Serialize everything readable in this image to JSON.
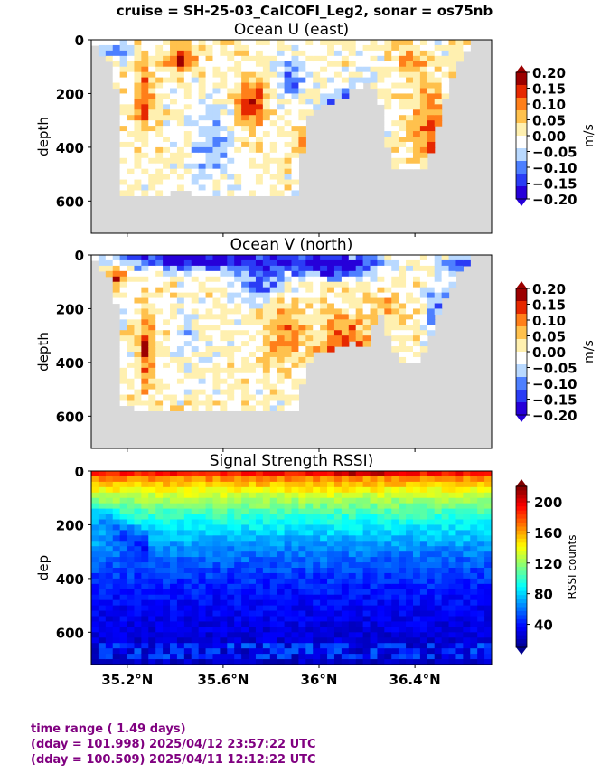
{
  "suptitle": "cruise = SH-25-03_CalCOFI_Leg2,  sonar = os75nb",
  "footer": {
    "line1": "time range ( 1.49 days)",
    "line2": "(dday = 101.998) 2025/04/12 23:57:22 UTC",
    "line3": "(dday = 100.509) 2025/04/11 12:12:22 UTC"
  },
  "colors": {
    "nodata": "#d9d9d9",
    "footer": "#800080",
    "vel_levels": [
      "#2600d9",
      "#2a3cf5",
      "#4d7fff",
      "#b9d9ff",
      "#ffffff",
      "#fff0b0",
      "#ffc14d",
      "#ff7f1a",
      "#e62800",
      "#9c0000"
    ],
    "jet": [
      "#00008f",
      "#0000ff",
      "#007fff",
      "#00ffff",
      "#7fff7f",
      "#ffff00",
      "#ff7f00",
      "#ff0000",
      "#7f0000"
    ]
  },
  "chart_data": [
    {
      "type": "heatmap",
      "title": "Ocean U (east)",
      "xlabel": "",
      "ylabel": "depth",
      "xlim": [
        35.05,
        36.72
      ],
      "ylim": [
        720,
        0
      ],
      "yticks": [
        0,
        200,
        400,
        600
      ],
      "xticks": [
        35.2,
        35.6,
        36.0,
        36.4
      ],
      "colorbar": {
        "label": "m/s",
        "range": [
          -0.2,
          0.2
        ],
        "ticks": [
          "0.20",
          "0.15",
          "0.10",
          "0.05",
          "0.00",
          "−0.05",
          "−0.10",
          "−0.15",
          "−0.20"
        ],
        "extend": "both"
      },
      "bottom_profile": [
        [
          35.05,
          0
        ],
        [
          35.08,
          50
        ],
        [
          35.12,
          80
        ],
        [
          35.15,
          110
        ],
        [
          35.18,
          580
        ],
        [
          35.25,
          580
        ],
        [
          35.35,
          575
        ],
        [
          35.45,
          560
        ],
        [
          35.5,
          580
        ],
        [
          35.6,
          580
        ],
        [
          35.7,
          580
        ],
        [
          35.8,
          580
        ],
        [
          35.9,
          580
        ],
        [
          35.95,
          300
        ],
        [
          36.0,
          240
        ],
        [
          36.05,
          230
        ],
        [
          36.1,
          220
        ],
        [
          36.15,
          180
        ],
        [
          36.2,
          160
        ],
        [
          36.25,
          200
        ],
        [
          36.28,
          350
        ],
        [
          36.3,
          480
        ],
        [
          36.35,
          480
        ],
        [
          36.4,
          470
        ],
        [
          36.45,
          470
        ],
        [
          36.5,
          300
        ],
        [
          36.55,
          150
        ],
        [
          36.6,
          50
        ],
        [
          36.65,
          0
        ],
        [
          36.72,
          0
        ]
      ],
      "blobs": [
        {
          "x": 35.42,
          "y": 70,
          "rx": 0.05,
          "ry": 40,
          "v": 0.2
        },
        {
          "x": 35.27,
          "y": 220,
          "rx": 0.03,
          "ry": 140,
          "v": 0.15
        },
        {
          "x": 35.55,
          "y": 380,
          "rx": 0.08,
          "ry": 120,
          "v": -0.08
        },
        {
          "x": 35.72,
          "y": 230,
          "rx": 0.06,
          "ry": 80,
          "v": 0.16
        },
        {
          "x": 35.88,
          "y": 150,
          "rx": 0.06,
          "ry": 70,
          "v": -0.12
        },
        {
          "x": 36.08,
          "y": 280,
          "rx": 0.05,
          "ry": 90,
          "v": -0.2
        },
        {
          "x": 35.96,
          "y": 380,
          "rx": 0.06,
          "ry": 90,
          "v": 0.08
        },
        {
          "x": 36.2,
          "y": 130,
          "rx": 0.04,
          "ry": 80,
          "v": -0.05
        },
        {
          "x": 36.45,
          "y": 300,
          "rx": 0.08,
          "ry": 150,
          "v": 0.1
        },
        {
          "x": 36.5,
          "y": 400,
          "rx": 0.03,
          "ry": 40,
          "v": 0.2
        },
        {
          "x": 36.38,
          "y": 80,
          "rx": 0.06,
          "ry": 60,
          "v": 0.08
        },
        {
          "x": 35.17,
          "y": 40,
          "rx": 0.06,
          "ry": 30,
          "v": -0.1
        }
      ]
    },
    {
      "type": "heatmap",
      "title": "Ocean V (north)",
      "xlabel": "",
      "ylabel": "depth",
      "xlim": [
        35.05,
        36.72
      ],
      "ylim": [
        720,
        0
      ],
      "yticks": [
        0,
        200,
        400,
        600
      ],
      "xticks": [
        35.2,
        35.6,
        36.0,
        36.4
      ],
      "colorbar": {
        "label": "m/s",
        "range": [
          -0.2,
          0.2
        ],
        "ticks": [
          "0.20",
          "0.15",
          "0.10",
          "0.05",
          "0.00",
          "−0.05",
          "−0.10",
          "−0.15",
          "−0.20"
        ],
        "extend": "both"
      },
      "bottom_profile": [
        [
          35.05,
          0
        ],
        [
          35.08,
          50
        ],
        [
          35.12,
          80
        ],
        [
          35.15,
          110
        ],
        [
          35.18,
          560
        ],
        [
          35.25,
          580
        ],
        [
          35.35,
          575
        ],
        [
          35.45,
          570
        ],
        [
          35.5,
          580
        ],
        [
          35.6,
          580
        ],
        [
          35.7,
          580
        ],
        [
          35.8,
          580
        ],
        [
          35.9,
          580
        ],
        [
          35.95,
          400
        ],
        [
          36.0,
          360
        ],
        [
          36.05,
          350
        ],
        [
          36.1,
          340
        ],
        [
          36.15,
          320
        ],
        [
          36.2,
          350
        ],
        [
          36.25,
          200
        ],
        [
          36.3,
          320
        ],
        [
          36.35,
          410
        ],
        [
          36.4,
          400
        ],
        [
          36.45,
          350
        ],
        [
          36.5,
          200
        ],
        [
          36.55,
          120
        ],
        [
          36.6,
          50
        ],
        [
          36.65,
          0
        ],
        [
          36.72,
          0
        ]
      ],
      "blobs": [
        {
          "x": 35.5,
          "y": 20,
          "rx": 0.35,
          "ry": 35,
          "v": -0.2
        },
        {
          "x": 36.05,
          "y": 40,
          "rx": 0.2,
          "ry": 45,
          "v": -0.2
        },
        {
          "x": 35.75,
          "y": 110,
          "rx": 0.1,
          "ry": 60,
          "v": -0.12
        },
        {
          "x": 36.1,
          "y": 380,
          "rx": 0.1,
          "ry": 150,
          "v": 0.16
        },
        {
          "x": 35.85,
          "y": 300,
          "rx": 0.08,
          "ry": 120,
          "v": 0.1
        },
        {
          "x": 35.28,
          "y": 350,
          "rx": 0.03,
          "ry": 150,
          "v": 0.15
        },
        {
          "x": 35.45,
          "y": 280,
          "rx": 0.05,
          "ry": 100,
          "v": -0.05
        },
        {
          "x": 36.5,
          "y": 220,
          "rx": 0.05,
          "ry": 120,
          "v": -0.12
        },
        {
          "x": 36.3,
          "y": 200,
          "rx": 0.07,
          "ry": 80,
          "v": 0.05
        },
        {
          "x": 35.15,
          "y": 80,
          "rx": 0.05,
          "ry": 40,
          "v": 0.15
        },
        {
          "x": 36.6,
          "y": 30,
          "rx": 0.07,
          "ry": 30,
          "v": -0.15
        }
      ]
    },
    {
      "type": "heatmap",
      "title": "Signal Strength RSSI)",
      "xlabel": "",
      "ylabel": "dep",
      "xlim": [
        35.05,
        36.72
      ],
      "ylim": [
        720,
        0
      ],
      "yticks": [
        0,
        200,
        400,
        600
      ],
      "xticks": [
        35.2,
        35.6,
        36.0,
        36.4
      ],
      "xticklabels": [
        "35.2°N",
        "35.6°N",
        "36°N",
        "36.4°N"
      ],
      "colorbar": {
        "label": "RSSI counts",
        "range": [
          10,
          220
        ],
        "ticks": [
          "200",
          "160",
          "120",
          "80",
          "40"
        ],
        "tick_values": [
          200,
          160,
          120,
          80,
          40
        ],
        "extend": "both"
      },
      "surface_value": 185,
      "decay_depth": 380,
      "deep_value": 15,
      "band_depths": [
        640,
        665,
        690
      ]
    }
  ]
}
